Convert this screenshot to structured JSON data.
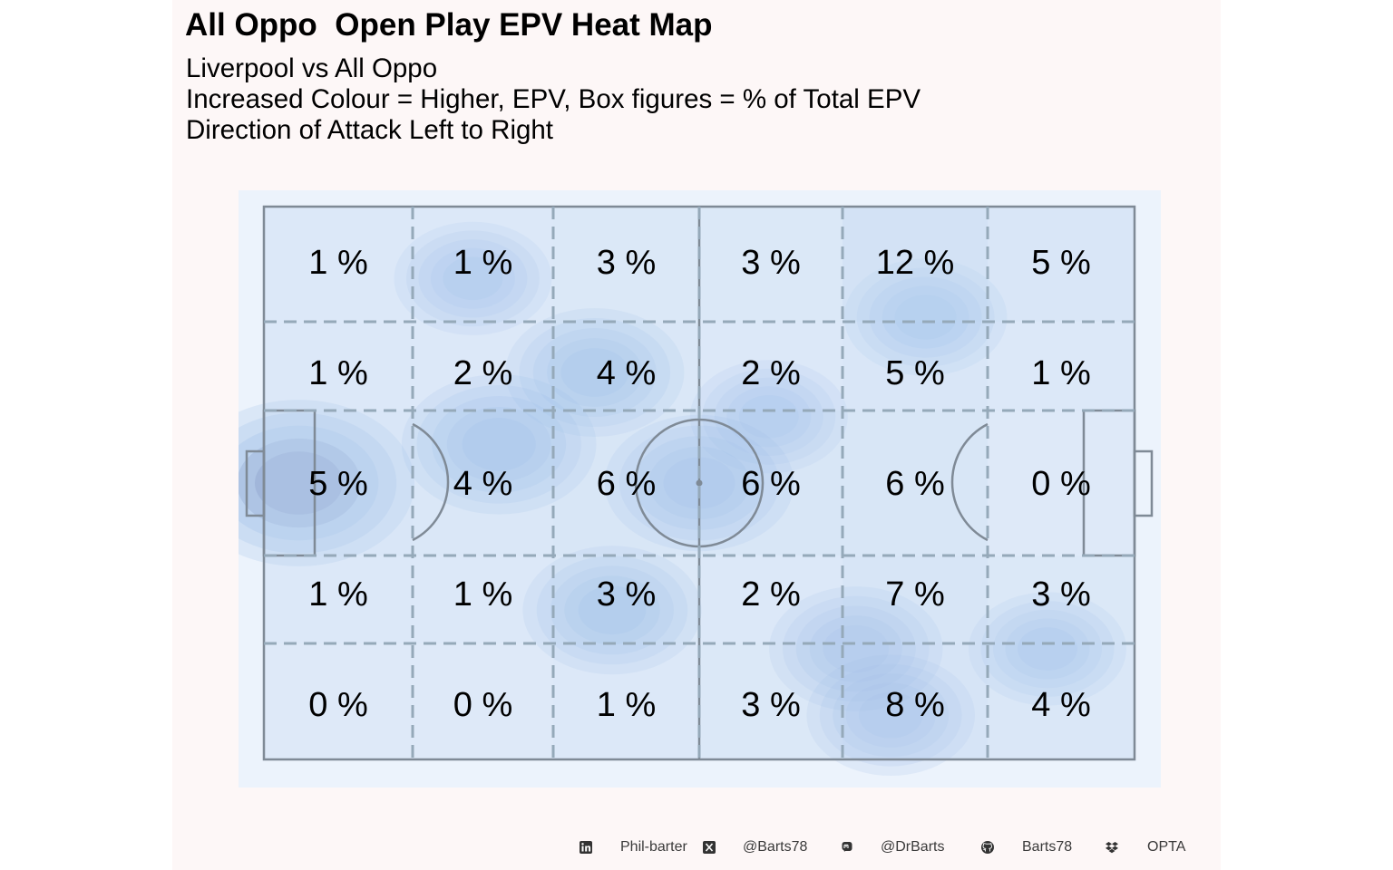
{
  "header": {
    "title": "All Oppo  Open Play EPV Heat Map",
    "subtitle_lines": [
      "Liverpool vs All Oppo",
      "Increased Colour = Higher, EPV, Box figures = % of Total EPV",
      "Direction of Attack Left to Right"
    ]
  },
  "colors": {
    "panel_background": "#fdf7f7",
    "pitch_background": "#ecf3fc",
    "pitch_lines": "#7f8a96",
    "heat_low": "#b9d1ee",
    "heat_high": "#5b6fa8",
    "label_text": "#000000"
  },
  "chart_data": {
    "type": "heatmap",
    "title": "All Oppo  Open Play EPV Heat Map",
    "value_unit": "% of Total EPV",
    "direction_of_attack": "left to right",
    "zones": {
      "columns": 6,
      "rows": 5,
      "row_order": "top to bottom",
      "column_order": "left to right"
    },
    "values": [
      [
        1,
        1,
        3,
        3,
        12,
        5
      ],
      [
        1,
        2,
        4,
        2,
        5,
        1
      ],
      [
        5,
        4,
        6,
        6,
        6,
        0
      ],
      [
        1,
        1,
        3,
        2,
        7,
        3
      ],
      [
        0,
        0,
        1,
        3,
        8,
        4
      ]
    ],
    "labels": [
      [
        "1 %",
        "1 %",
        "3 %",
        "3 %",
        "12 %",
        "5 %"
      ],
      [
        "1 %",
        "2 %",
        "4 %",
        "2 %",
        "5 %",
        "1 %"
      ],
      [
        "5 %",
        "4 %",
        "6 %",
        "6 %",
        "6 %",
        "0 %"
      ],
      [
        "1 %",
        "1 %",
        "3 %",
        "2 %",
        "7 %",
        "3 %"
      ],
      [
        "0 %",
        "0 %",
        "1 %",
        "3 %",
        "8 %",
        "4 %"
      ]
    ],
    "density_hotspots": [
      {
        "x": 4,
        "y": 50,
        "strength": 1.0
      },
      {
        "x": 27,
        "y": 43,
        "strength": 0.65
      },
      {
        "x": 50,
        "y": 50,
        "strength": 0.6
      },
      {
        "x": 38,
        "y": 30,
        "strength": 0.5
      },
      {
        "x": 40,
        "y": 73,
        "strength": 0.5
      },
      {
        "x": 68,
        "y": 80,
        "strength": 0.45
      },
      {
        "x": 72,
        "y": 92,
        "strength": 0.4
      },
      {
        "x": 76,
        "y": 20,
        "strength": 0.35
      },
      {
        "x": 58,
        "y": 38,
        "strength": 0.3
      },
      {
        "x": 24,
        "y": 13,
        "strength": 0.3
      },
      {
        "x": 90,
        "y": 80,
        "strength": 0.3
      }
    ],
    "grid": true,
    "legend": "none"
  },
  "footer": {
    "items": [
      {
        "icon": "linkedin-icon",
        "text": "Phil-barter"
      },
      {
        "icon": "x-twitter-icon",
        "text": "@Barts78"
      },
      {
        "icon": "mastodon-icon",
        "text": "@DrBarts"
      },
      {
        "icon": "github-icon",
        "text": "Barts78"
      },
      {
        "icon": "dropbox-icon",
        "text": "OPTA"
      }
    ]
  }
}
